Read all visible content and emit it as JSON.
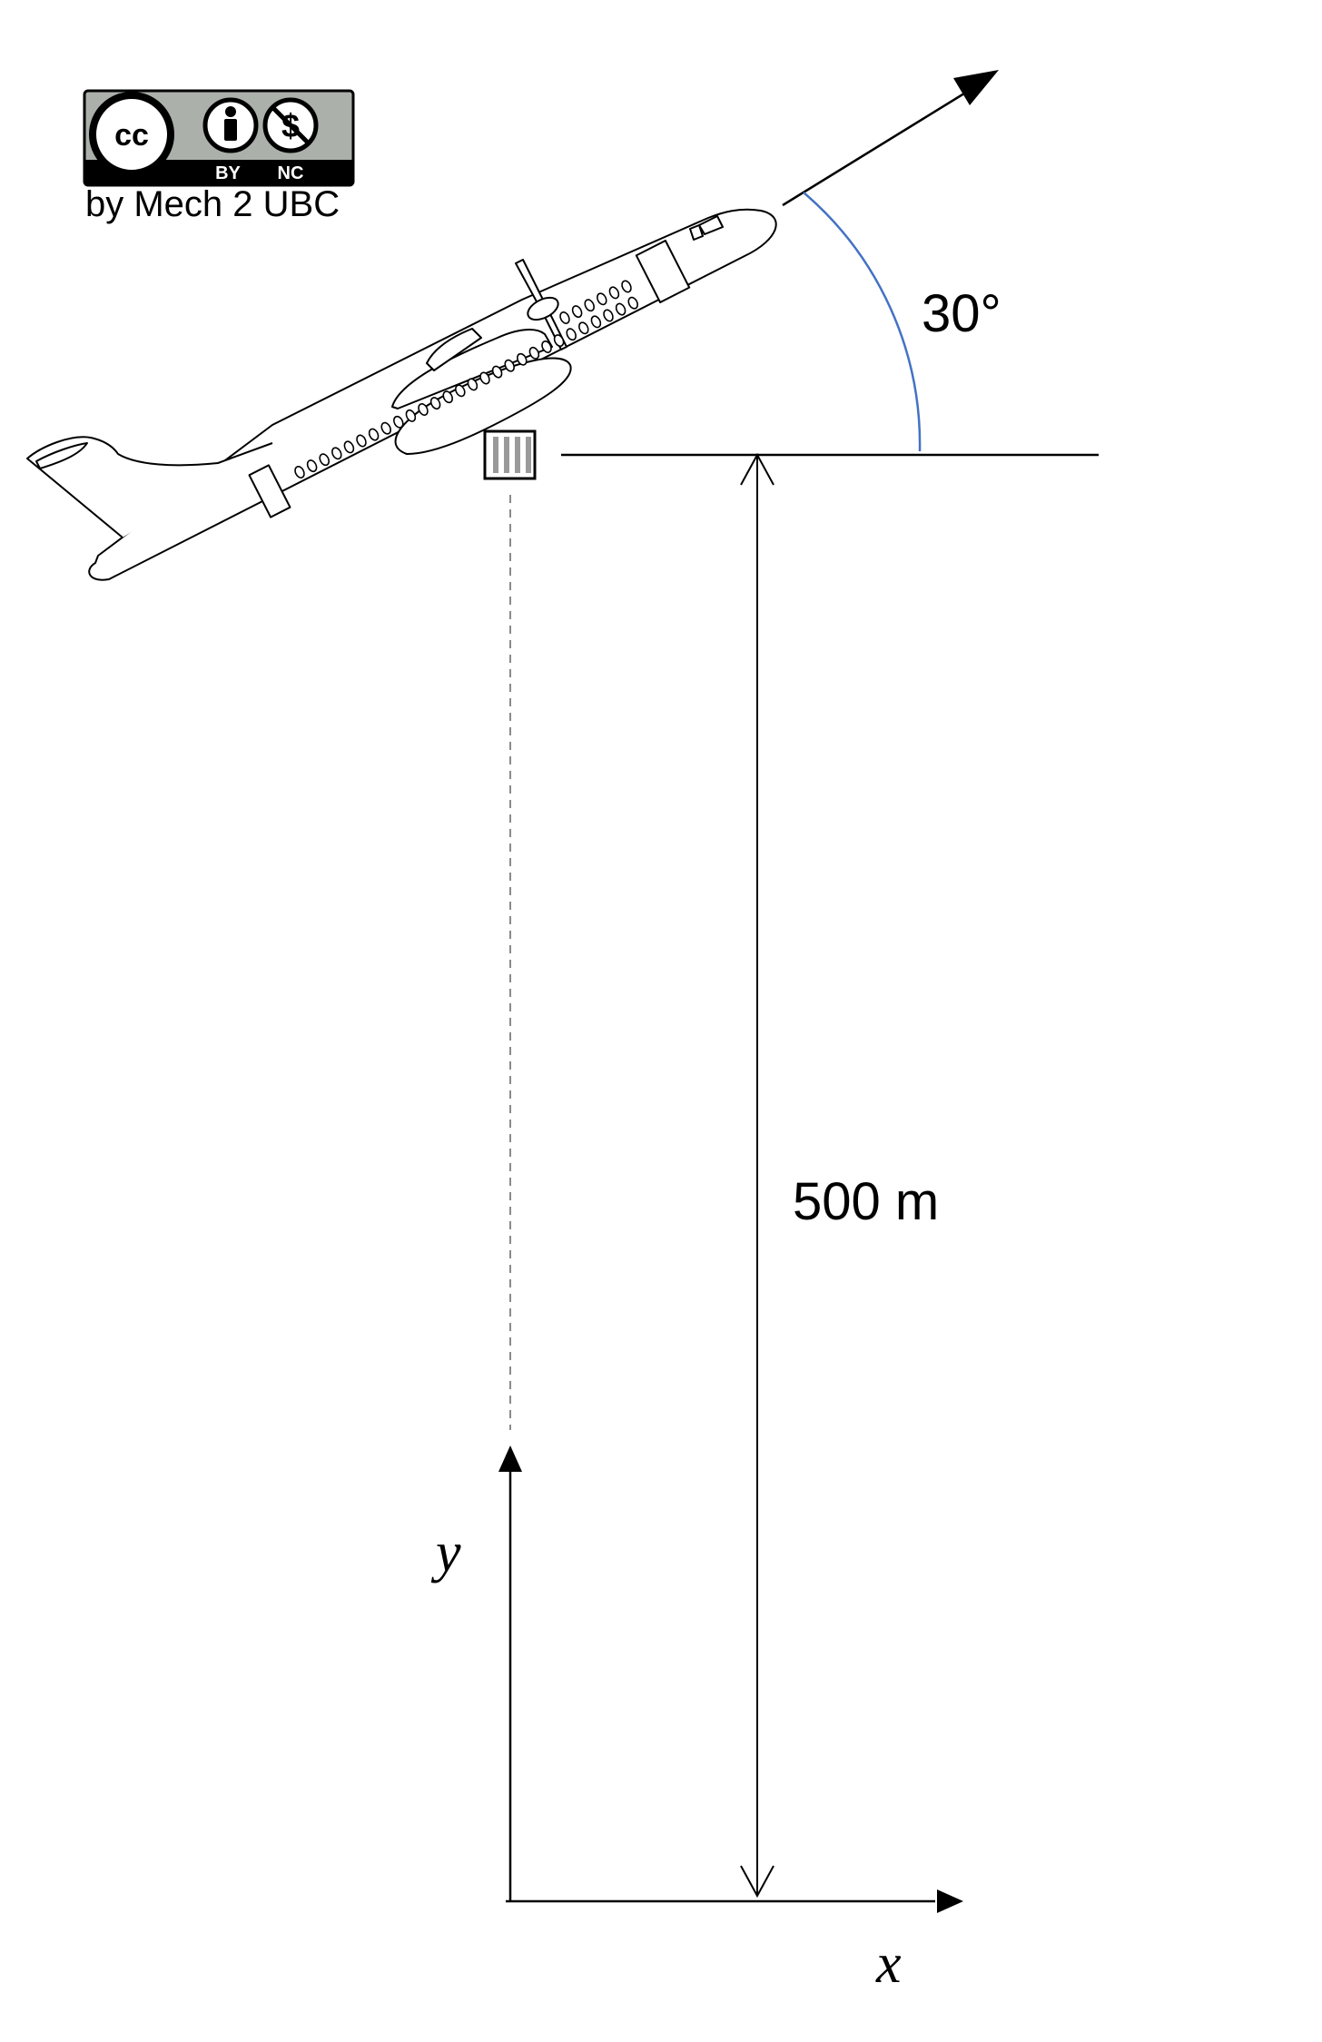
{
  "license": {
    "sub_by": "BY",
    "sub_nc": "NC",
    "cc_mark": "cc",
    "attribution": "by Mech 2 UBC"
  },
  "labels": {
    "angle": "30°",
    "height": "500 m",
    "x_axis": "x",
    "y_axis": "y"
  },
  "icons": [
    "cc-logo-icon",
    "attribution-icon",
    "noncommercial-icon",
    "airplane-icon",
    "package-icon"
  ],
  "colors": {
    "angle_arc": "#4472c4",
    "cc_badge_bg": "#abb0ab",
    "stroke": "#000000"
  }
}
